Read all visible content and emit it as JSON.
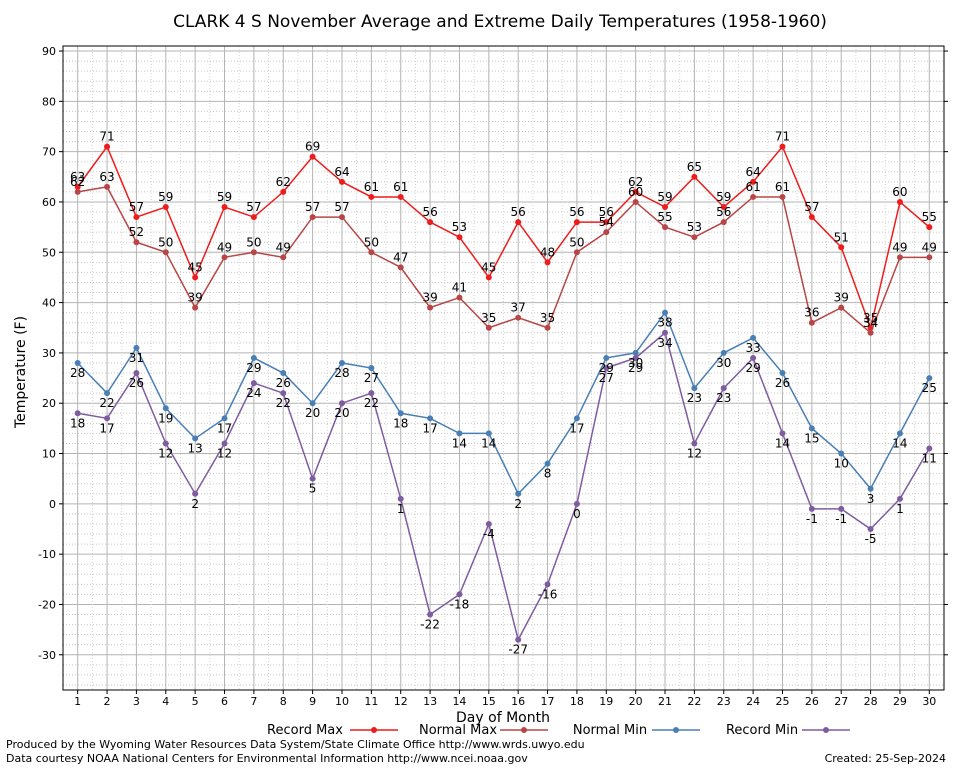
{
  "chart_data": {
    "type": "line",
    "title": "CLARK 4 S November Average and Extreme Daily Temperatures (1958-1960)",
    "xlabel": "Day of Month",
    "ylabel": "Temperature (F)",
    "xlim": [
      0.5,
      30.5
    ],
    "ylim": [
      -37,
      91
    ],
    "yticks": [
      -30,
      -20,
      -10,
      0,
      10,
      20,
      30,
      40,
      50,
      60,
      70,
      80,
      90
    ],
    "x": [
      1,
      2,
      3,
      4,
      5,
      6,
      7,
      8,
      9,
      10,
      11,
      12,
      13,
      14,
      15,
      16,
      17,
      18,
      19,
      20,
      21,
      22,
      23,
      24,
      25,
      26,
      27,
      28,
      29,
      30
    ],
    "grid": true,
    "legend_position": "bottom",
    "series": [
      {
        "name": "Record Max",
        "color": "#ee1c1c",
        "values": [
          63,
          71,
          57,
          59,
          45,
          59,
          57,
          62,
          69,
          64,
          61,
          61,
          56,
          53,
          45,
          56,
          48,
          56,
          56,
          62,
          59,
          65,
          59,
          64,
          71,
          57,
          51,
          35,
          60,
          55
        ]
      },
      {
        "name": "Normal Max",
        "color": "#b84646",
        "values": [
          62,
          63,
          52,
          50,
          39,
          49,
          50,
          49,
          57,
          57,
          50,
          47,
          39,
          41,
          35,
          37,
          35,
          50,
          54,
          60,
          55,
          53,
          56,
          61,
          61,
          36,
          39,
          34,
          49,
          49
        ]
      },
      {
        "name": "Normal Min",
        "color": "#4a7fb5",
        "values": [
          28,
          22,
          31,
          19,
          13,
          17,
          29,
          26,
          20,
          28,
          27,
          18,
          17,
          14,
          14,
          2,
          8,
          17,
          29,
          30,
          38,
          23,
          30,
          33,
          26,
          15,
          10,
          3,
          14,
          25
        ]
      },
      {
        "name": "Record Min",
        "color": "#7f5ca0",
        "values": [
          18,
          17,
          26,
          12,
          2,
          12,
          24,
          22,
          5,
          20,
          22,
          1,
          -22,
          -18,
          -4,
          -27,
          -16,
          0,
          27,
          29,
          34,
          12,
          23,
          29,
          14,
          -1,
          -1,
          -5,
          1,
          11
        ]
      }
    ]
  },
  "footer": {
    "credit_line1": "Produced by the Wyoming Water Resources Data System/State Climate Office http://www.wrds.uwyo.edu",
    "credit_line2": "Data courtesy NOAA National Centers for Environmental Information http://www.ncei.noaa.gov",
    "created": "Created:  25-Sep-2024"
  }
}
